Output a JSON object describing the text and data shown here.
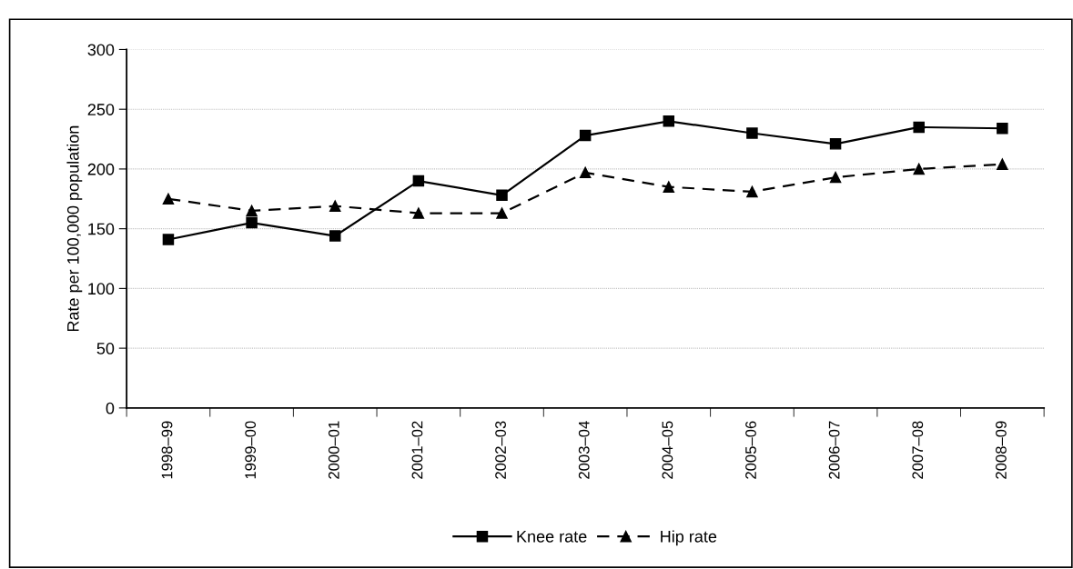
{
  "chart_data": {
    "type": "line",
    "ylabel": "Rate per 100,000 population",
    "categories": [
      "1998–99",
      "1999–00",
      "2000–01",
      "2001–02",
      "2002–03",
      "2003–04",
      "2004–05",
      "2005–06",
      "2006–07",
      "2007–08",
      "2008–09"
    ],
    "series": [
      {
        "name": "Knee rate",
        "color": "#000000",
        "marker": "square",
        "line_style": "solid",
        "values": [
          141,
          155,
          144,
          190,
          178,
          228,
          240,
          230,
          221,
          235,
          234
        ]
      },
      {
        "name": "Hip rate",
        "color": "#000000",
        "marker": "triangle",
        "line_style": "dashed",
        "values": [
          175,
          165,
          169,
          163,
          163,
          197,
          185,
          181,
          193,
          200,
          204
        ]
      }
    ],
    "ylim": [
      0,
      300
    ],
    "yticks": [
      0,
      50,
      100,
      150,
      200,
      250,
      300
    ],
    "grid": "y",
    "legend": "bottom"
  }
}
